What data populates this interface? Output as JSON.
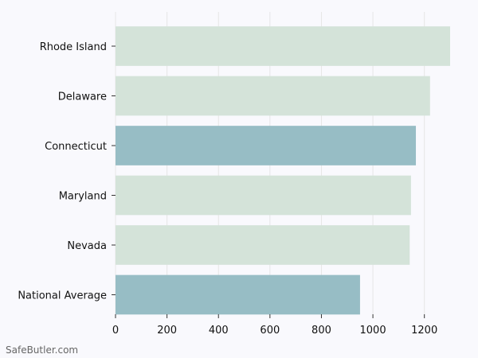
{
  "chart_data": {
    "type": "bar",
    "orientation": "horizontal",
    "categories": [
      "Rhode Island",
      "Delaware",
      "Connecticut",
      "Maryland",
      "Nevada",
      "National Average"
    ],
    "values": [
      1300,
      1222,
      1167,
      1148,
      1143,
      950
    ],
    "highlight": [
      false,
      false,
      true,
      false,
      false,
      true
    ],
    "colors": {
      "default": "#d4e3d9",
      "highlight": "#97bdc5"
    },
    "xlim": [
      0,
      1300
    ],
    "xticks": [
      0,
      200,
      400,
      600,
      800,
      1000,
      1200
    ],
    "xlabel": "",
    "ylabel": "",
    "title": "",
    "grid": "vertical"
  },
  "footer": {
    "source": "SafeButler.com"
  }
}
